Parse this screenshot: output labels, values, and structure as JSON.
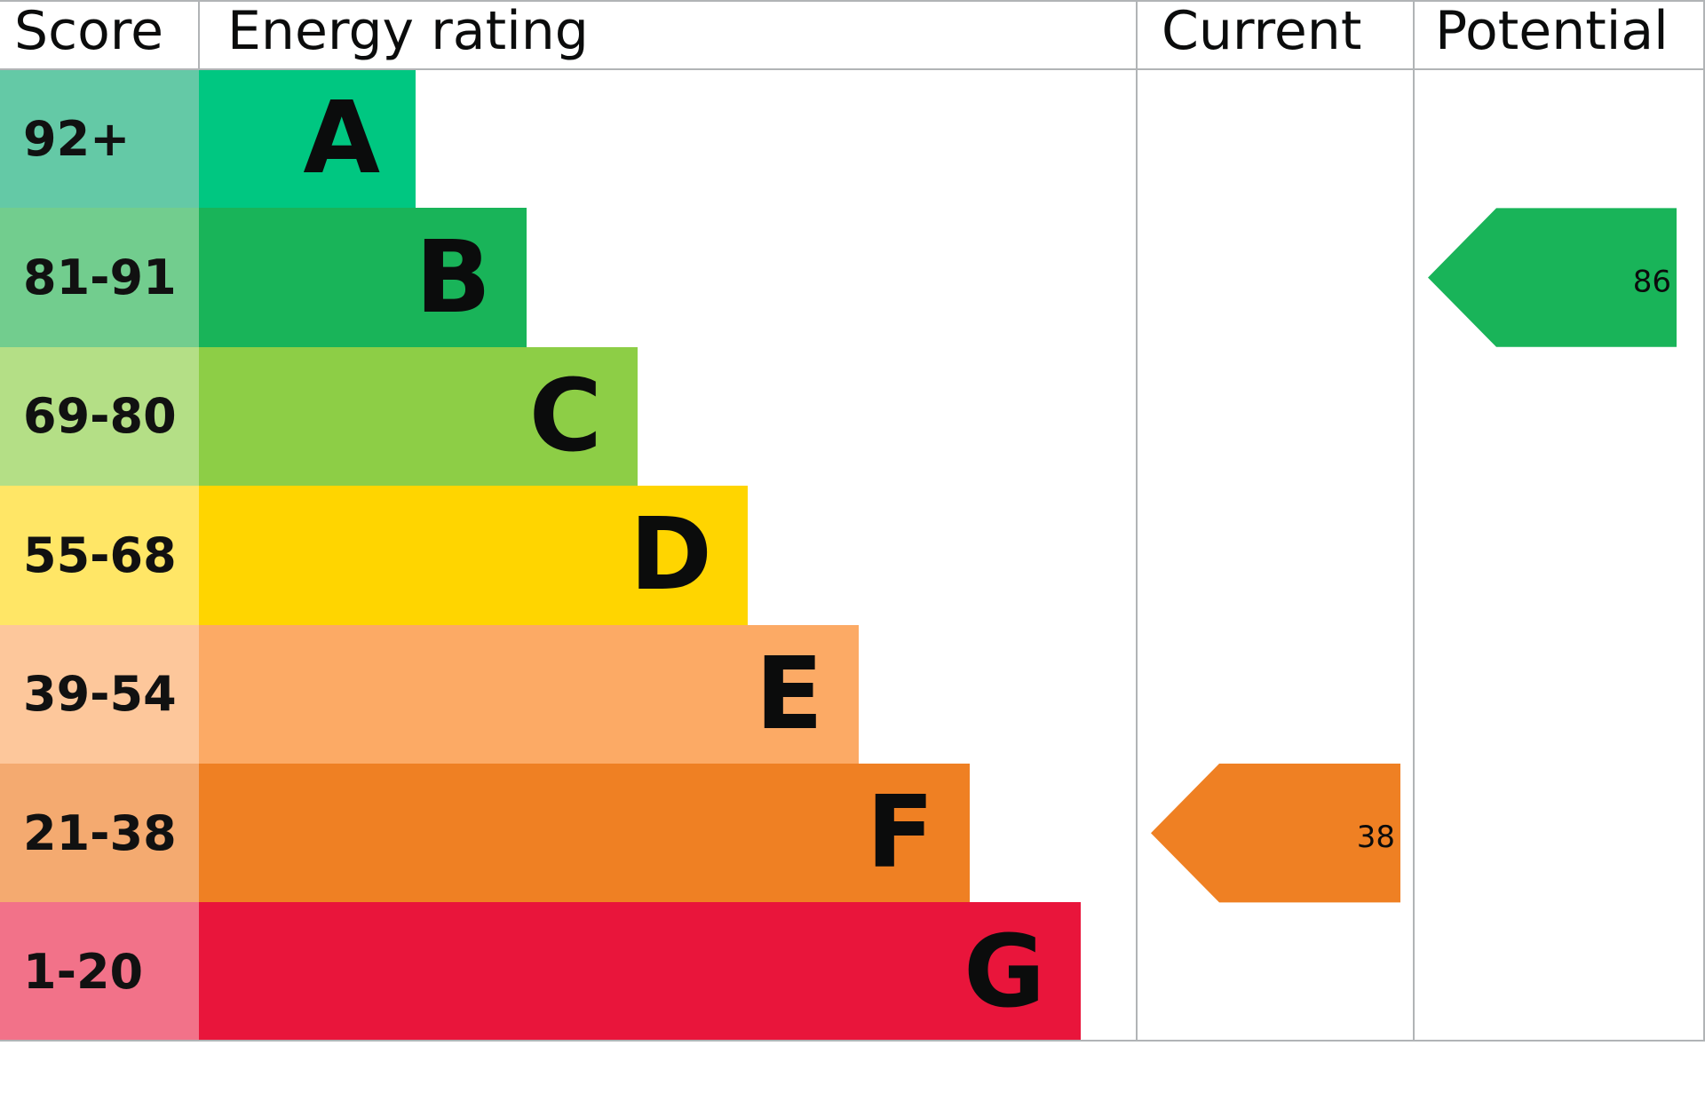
{
  "chart_data": {
    "type": "table",
    "headers": {
      "score": "Score",
      "rating": "Energy rating",
      "current": "Current",
      "potential": "Potential"
    },
    "bands": [
      {
        "score": "92+",
        "letter": "A",
        "color": "#00c781",
        "score_color": "#64c9a6"
      },
      {
        "score": "81-91",
        "letter": "B",
        "color": "#19b459",
        "score_color": "#72cd8e"
      },
      {
        "score": "69-80",
        "letter": "C",
        "color": "#8dce46",
        "score_color": "#b4df86"
      },
      {
        "score": "55-68",
        "letter": "D",
        "color": "#ffd500",
        "score_color": "#ffe666"
      },
      {
        "score": "39-54",
        "letter": "E",
        "color": "#fcaa65",
        "score_color": "#fdc79b"
      },
      {
        "score": "21-38",
        "letter": "F",
        "color": "#ef8023",
        "score_color": "#f4aa70"
      },
      {
        "score": "1-20",
        "letter": "G",
        "color": "#e9153b",
        "score_color": "#f27289"
      }
    ],
    "current": {
      "value": "38",
      "band": "F",
      "color": "#ef8023"
    },
    "potential": {
      "value": "86",
      "band": "B",
      "color": "#19b459"
    }
  }
}
